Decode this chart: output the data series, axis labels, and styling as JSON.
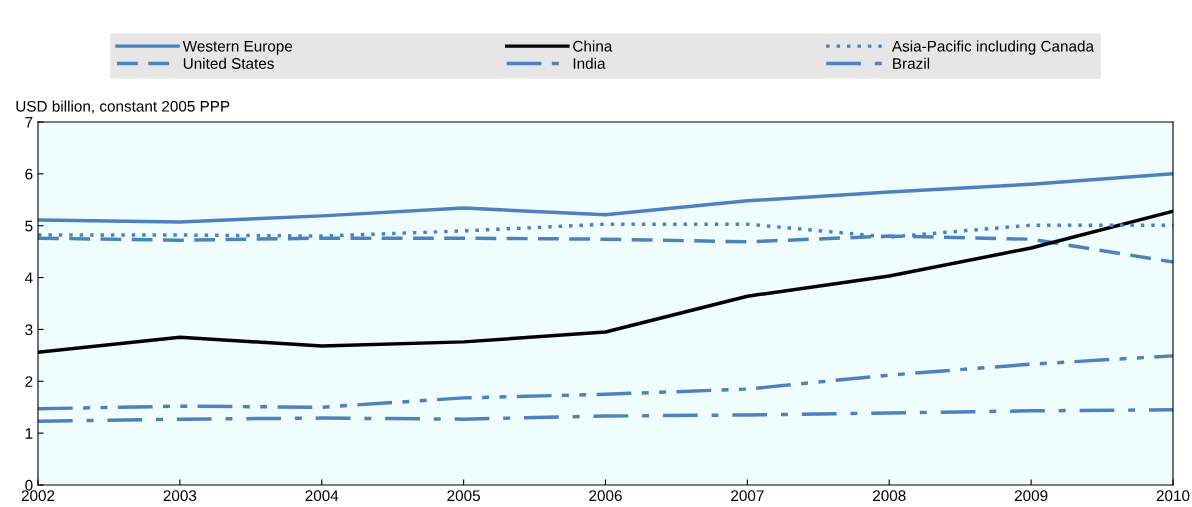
{
  "chart_data": {
    "type": "line",
    "ylabel": "USD billion, constant 2005 PPP",
    "x": [
      2002,
      2003,
      2004,
      2005,
      2006,
      2007,
      2008,
      2009,
      2010
    ],
    "xlim": [
      2002,
      2010
    ],
    "xticks": [
      2002,
      2003,
      2004,
      2005,
      2006,
      2007,
      2008,
      2009,
      2010
    ],
    "ylim": [
      0,
      7
    ],
    "yticks": [
      0,
      1,
      2,
      3,
      4,
      5,
      6,
      7
    ],
    "grid": false,
    "legend": "top",
    "marker": "none",
    "series": [
      {
        "name": "Western Europe",
        "color": "#4f81bd",
        "line_style": "solid",
        "values": [
          5.11,
          5.07,
          5.19,
          5.34,
          5.21,
          5.48,
          5.65,
          5.8,
          6.0
        ]
      },
      {
        "name": "United States",
        "color": "#4f81bd",
        "line_style": "dashed",
        "values": [
          4.76,
          4.72,
          4.76,
          4.76,
          4.74,
          4.69,
          4.8,
          4.74,
          4.3
        ]
      },
      {
        "name": "China",
        "color": "#000000",
        "line_style": "solid",
        "values": [
          2.56,
          2.85,
          2.68,
          2.76,
          2.95,
          3.64,
          4.03,
          4.57,
          5.28
        ]
      },
      {
        "name": "India",
        "color": "#4f81bd",
        "line_style": "dashdotdot",
        "values": [
          1.47,
          1.52,
          1.5,
          1.68,
          1.75,
          1.85,
          2.12,
          2.33,
          2.49
        ]
      },
      {
        "name": "Asia-Pacific including Canada",
        "color": "#4f81bd",
        "line_style": "dotted",
        "values": [
          4.82,
          4.82,
          4.8,
          4.9,
          5.03,
          5.03,
          4.78,
          5.01,
          5.01
        ]
      },
      {
        "name": "Brazil",
        "color": "#4f81bd",
        "line_style": "dashdot",
        "values": [
          1.23,
          1.27,
          1.29,
          1.27,
          1.33,
          1.35,
          1.39,
          1.43,
          1.45
        ]
      }
    ]
  }
}
